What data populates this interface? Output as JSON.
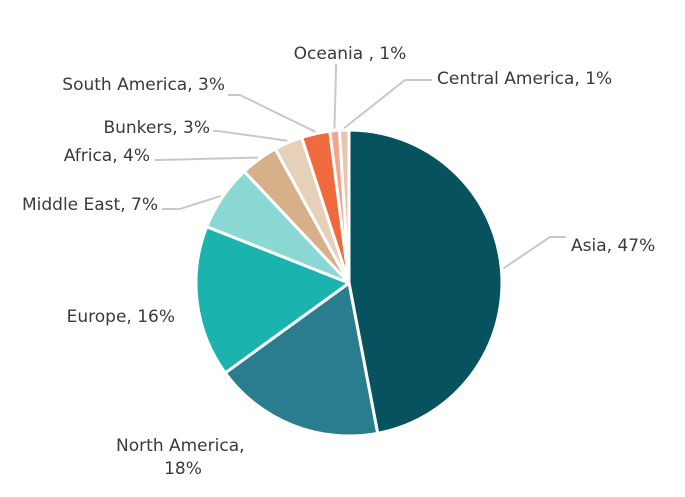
{
  "chart_data": {
    "type": "pie",
    "slices": [
      {
        "name": "Asia",
        "value": 47,
        "label": "Asia, 47%",
        "color": "#06535f"
      },
      {
        "name": "North America",
        "value": 18,
        "label_lines": [
          "North America,",
          "18%"
        ],
        "color": "#2a7d8e"
      },
      {
        "name": "Europe",
        "value": 16,
        "label": "Europe, 16%",
        "color": "#1bb3ad"
      },
      {
        "name": "Middle East",
        "value": 7,
        "label": "Middle East, 7%",
        "color": "#89d8d3"
      },
      {
        "name": "Africa",
        "value": 4,
        "label": "Africa, 4%",
        "color": "#d7b08a"
      },
      {
        "name": "Bunkers",
        "value": 3,
        "label": "Bunkers, 3%",
        "color": "#e7d0b8"
      },
      {
        "name": "South America",
        "value": 3,
        "label": "South America, 3%",
        "color": "#f06a3e"
      },
      {
        "name": "Oceania",
        "value": 1,
        "label": "Oceania , 1%",
        "color": "#f4a38c"
      },
      {
        "name": "Central America",
        "value": 1,
        "label": "Central America, 1%",
        "color": "#e8c6ad"
      }
    ],
    "start": "12 o'clock",
    "direction": "clockwise",
    "legend": "none",
    "leader_line_color": "#c8c8c8"
  }
}
